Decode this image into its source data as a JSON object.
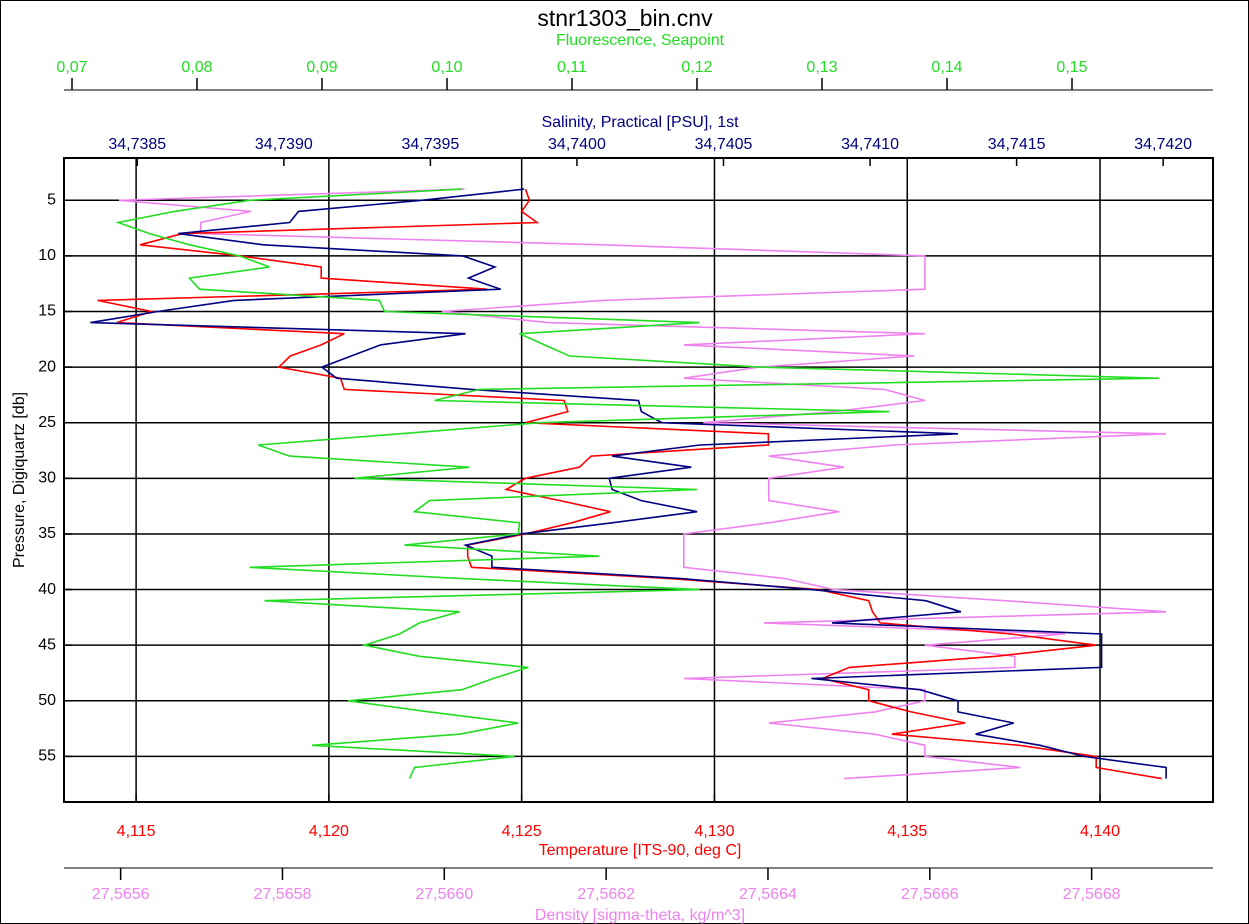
{
  "chart_data": {
    "type": "line",
    "title": "stnr1303_bin.cnv",
    "y_label": "Pressure, Digiquartz [db]",
    "y": [
      4,
      5,
      6,
      7,
      8,
      9,
      10,
      11,
      12,
      13,
      14,
      15,
      16,
      17,
      18,
      19,
      20,
      21,
      22,
      23,
      24,
      25,
      26,
      27,
      28,
      29,
      30,
      31,
      32,
      33,
      34,
      35,
      36,
      37,
      38,
      39,
      40,
      41,
      42,
      43,
      44,
      45,
      46,
      47,
      48,
      49,
      50,
      51,
      52,
      53,
      54,
      55,
      56,
      57
    ],
    "ylim": [
      1.2,
      59.1
    ],
    "y_reversed": true,
    "yticks": [
      5,
      10,
      15,
      20,
      25,
      30,
      35,
      40,
      45,
      50,
      55
    ],
    "grid": true,
    "x_axes": [
      {
        "label": "Fluorescence, Seapoint",
        "color": "#22dd22",
        "position": "top-outer",
        "lim": [
          0.06936,
          0.16128
        ],
        "ticks": [
          {
            "value": 0.07,
            "label": "0,07"
          },
          {
            "value": 0.08,
            "label": "0,08"
          },
          {
            "value": 0.09,
            "label": "0,09"
          },
          {
            "value": 0.1,
            "label": "0,10"
          },
          {
            "value": 0.11,
            "label": "0,11"
          },
          {
            "value": 0.12,
            "label": "0,12"
          },
          {
            "value": 0.13,
            "label": "0,13"
          },
          {
            "value": 0.14,
            "label": "0,14"
          },
          {
            "value": 0.15,
            "label": "0,15"
          }
        ],
        "values": [
          0.1012,
          0.0842,
          0.0782,
          0.0737,
          0.0762,
          0.0794,
          0.0834,
          0.0858,
          0.0794,
          0.0802,
          0.0946,
          0.095,
          0.1202,
          0.1058,
          0.1078,
          0.1098,
          0.125,
          0.157,
          0.1026,
          0.099,
          0.1354,
          0.1074,
          0.0962,
          0.0849,
          0.0874,
          0.1018,
          0.0926,
          0.12,
          0.0986,
          0.0974,
          0.1058,
          0.1057,
          0.0966,
          0.1122,
          0.0842,
          0.101,
          0.1202,
          0.0854,
          0.101,
          0.0978,
          0.0962,
          0.0934,
          0.0978,
          0.1065,
          0.1037,
          0.1012,
          0.0921,
          0.0986,
          0.1057,
          0.101,
          0.0892,
          0.1054,
          0.0974,
          0.097
        ]
      },
      {
        "label": "Salinity, Practical [PSU], 1st",
        "color": "#000080",
        "position": "top-inner",
        "lim": [
          34.73825,
          34.74217
        ],
        "ticks": [
          {
            "value": 34.7385,
            "label": "34,7385"
          },
          {
            "value": 34.739,
            "label": "34,7390"
          },
          {
            "value": 34.7395,
            "label": "34,7395"
          },
          {
            "value": 34.74,
            "label": "34,7400"
          },
          {
            "value": 34.7405,
            "label": "34,7405"
          },
          {
            "value": 34.741,
            "label": "34,7410"
          },
          {
            "value": 34.7415,
            "label": "34,7415"
          },
          {
            "value": 34.742,
            "label": "34,7420"
          }
        ],
        "values": [
          34.73982,
          34.73947,
          34.73905,
          34.73902,
          34.73864,
          34.73893,
          34.73961,
          34.73972,
          34.73963,
          34.73974,
          34.73883,
          34.73857,
          34.73834,
          34.73962,
          34.73933,
          34.73923,
          34.73913,
          34.73918,
          34.73964,
          34.74021,
          34.74022,
          34.74029,
          34.7413,
          34.74042,
          34.74012,
          34.74039,
          34.74011,
          34.74012,
          34.74022,
          34.74041,
          34.74012,
          34.73981,
          34.73962,
          34.73971,
          34.73971,
          34.74035,
          34.7408,
          34.74119,
          34.74131,
          34.74087,
          34.74179,
          34.74179,
          34.74179,
          34.74179,
          34.7408,
          34.74117,
          34.7413,
          34.7413,
          34.74149,
          34.74136,
          34.74158,
          34.74173,
          34.74201,
          34.74201
        ]
      },
      {
        "label": "Temperature [ITS-90, deg C]",
        "color": "#ff0000",
        "position": "bottom-inner",
        "grid": true,
        "lim": [
          4.11313,
          4.14293
        ],
        "ticks": [
          {
            "value": 4.115,
            "label": "4,115"
          },
          {
            "value": 4.12,
            "label": "4,120"
          },
          {
            "value": 4.125,
            "label": "4,125"
          },
          {
            "value": 4.13,
            "label": "4,130"
          },
          {
            "value": 4.135,
            "label": "4,135"
          },
          {
            "value": 4.14,
            "label": "4,140"
          }
        ],
        "values": [
          4.1251,
          4.1252,
          4.125,
          4.1254,
          4.1162,
          4.1151,
          4.1177,
          4.1198,
          4.1198,
          4.1241,
          4.114,
          4.1154,
          4.1145,
          4.1204,
          4.1198,
          4.119,
          4.1187,
          4.1203,
          4.1204,
          4.1261,
          4.1262,
          4.1251,
          4.1314,
          4.1314,
          4.1268,
          4.1265,
          4.1251,
          4.1246,
          4.126,
          4.1273,
          4.1263,
          4.1251,
          4.1236,
          4.1236,
          4.1237,
          4.1288,
          4.1327,
          4.134,
          4.1341,
          4.1343,
          4.1377,
          4.1399,
          4.1373,
          4.1335,
          4.1328,
          4.134,
          4.134,
          4.1351,
          4.1365,
          4.1346,
          4.1379,
          4.1399,
          4.1399,
          4.1416
        ]
      },
      {
        "label": "Density [sigma-theta, kg/m^3]",
        "color": "#ee82ee",
        "position": "bottom-outer",
        "lim": [
          27.56553,
          27.56695
        ],
        "ticks": [
          {
            "value": 27.5656,
            "label": "27,5656"
          },
          {
            "value": 27.5658,
            "label": "27,5658"
          },
          {
            "value": 27.566,
            "label": "27,5660"
          },
          {
            "value": 27.5662,
            "label": "27,5662"
          },
          {
            "value": 27.5664,
            "label": "27,5664"
          },
          {
            "value": 27.5666,
            "label": "27,5666"
          },
          {
            "value": 27.5668,
            "label": "27,5668"
          }
        ],
        "values": [
          27.566025,
          27.565598,
          27.565761,
          27.565699,
          27.565699,
          27.566196,
          27.566594,
          27.566594,
          27.566594,
          27.566594,
          27.566196,
          27.565997,
          27.566128,
          27.566594,
          27.566296,
          27.566581,
          27.566389,
          27.566296,
          27.566544,
          27.566594,
          27.566482,
          27.56632,
          27.566892,
          27.566556,
          27.566401,
          27.566494,
          27.566401,
          27.566401,
          27.566401,
          27.566488,
          27.566401,
          27.566296,
          27.566296,
          27.566296,
          27.566296,
          27.56642,
          27.566482,
          27.566693,
          27.566892,
          27.566395,
          27.566767,
          27.566594,
          27.566705,
          27.566705,
          27.566296,
          27.566594,
          27.566594,
          27.566532,
          27.566401,
          27.566532,
          27.566594,
          27.566594,
          27.566712,
          27.566494
        ]
      }
    ]
  }
}
